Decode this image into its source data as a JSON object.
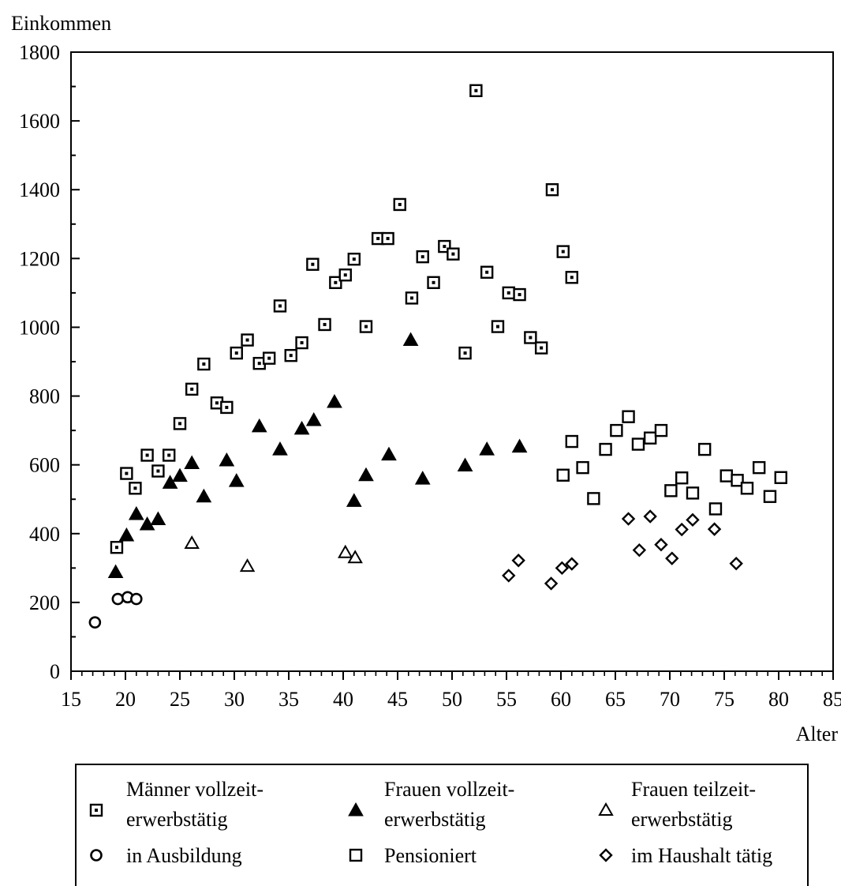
{
  "chart_data": {
    "type": "scatter",
    "ylabel": "Einkommen",
    "xlabel": "Alter",
    "xlim": [
      15,
      85
    ],
    "ylim": [
      0,
      1800
    ],
    "xticks": [
      "15",
      "20",
      "25",
      "30",
      "35",
      "40",
      "45",
      "50",
      "55",
      "60",
      "65",
      "70",
      "75",
      "80",
      "85"
    ],
    "yticks": [
      "0",
      "200",
      "400",
      "600",
      "800",
      "1000",
      "1200",
      "1400",
      "1600",
      "1800"
    ],
    "grid": false,
    "legend_position": "bottom",
    "series": [
      {
        "name_lines": [
          "Männer vollzeit-",
          "erwerbstätig"
        ],
        "marker": "square-dot",
        "points": [
          [
            19.2,
            360
          ],
          [
            20.1,
            575
          ],
          [
            20.9,
            532
          ],
          [
            22,
            628
          ],
          [
            23,
            582
          ],
          [
            24,
            628
          ],
          [
            25,
            720
          ],
          [
            26.1,
            820
          ],
          [
            27.2,
            893
          ],
          [
            28.4,
            780
          ],
          [
            29.3,
            767
          ],
          [
            30.2,
            925
          ],
          [
            31.2,
            963
          ],
          [
            32.3,
            895
          ],
          [
            33.2,
            910
          ],
          [
            34.2,
            1062
          ],
          [
            35.2,
            918
          ],
          [
            36.2,
            955
          ],
          [
            37.2,
            1183
          ],
          [
            38.3,
            1008
          ],
          [
            39.3,
            1130
          ],
          [
            40.2,
            1152
          ],
          [
            41,
            1198
          ],
          [
            42.1,
            1002
          ],
          [
            43.2,
            1258
          ],
          [
            44.1,
            1258
          ],
          [
            45.2,
            1357
          ],
          [
            46.3,
            1085
          ],
          [
            47.3,
            1205
          ],
          [
            48.3,
            1130
          ],
          [
            49.3,
            1235
          ],
          [
            50.1,
            1213
          ],
          [
            51.2,
            925
          ],
          [
            52.2,
            1688
          ],
          [
            53.2,
            1160
          ],
          [
            54.2,
            1002
          ],
          [
            55.2,
            1100
          ],
          [
            56.2,
            1095
          ],
          [
            57.2,
            970
          ],
          [
            58.2,
            940
          ],
          [
            59.2,
            1400
          ],
          [
            60.2,
            1220
          ],
          [
            61,
            1145
          ]
        ]
      },
      {
        "name_lines": [
          "Frauen vollzeit-",
          "erwerbstätig"
        ],
        "marker": "triangle-filled",
        "points": [
          [
            19.1,
            288
          ],
          [
            20.1,
            395
          ],
          [
            21,
            457
          ],
          [
            22,
            427
          ],
          [
            23,
            442
          ],
          [
            24.1,
            548
          ],
          [
            25,
            568
          ],
          [
            26.1,
            605
          ],
          [
            27.2,
            508
          ],
          [
            29.3,
            613
          ],
          [
            30.2,
            553
          ],
          [
            32.3,
            712
          ],
          [
            34.2,
            645
          ],
          [
            36.2,
            705
          ],
          [
            37.3,
            730
          ],
          [
            39.2,
            783
          ],
          [
            41,
            495
          ],
          [
            42.1,
            570
          ],
          [
            44.2,
            630
          ],
          [
            46.2,
            963
          ],
          [
            47.3,
            560
          ],
          [
            51.2,
            598
          ],
          [
            53.2,
            645
          ],
          [
            56.2,
            653
          ]
        ]
      },
      {
        "name_lines": [
          "Frauen teilzeit-",
          "erwerbstätig"
        ],
        "marker": "triangle-open",
        "points": [
          [
            26.1,
            372
          ],
          [
            31.2,
            305
          ],
          [
            40.2,
            345
          ],
          [
            41.1,
            330
          ]
        ]
      },
      {
        "name_lines": [
          "in Ausbildung"
        ],
        "marker": "circle-open",
        "points": [
          [
            17.2,
            142
          ],
          [
            19.3,
            210
          ],
          [
            20.2,
            215
          ],
          [
            21,
            210
          ]
        ]
      },
      {
        "name_lines": [
          "Pensioniert"
        ],
        "marker": "square-open",
        "points": [
          [
            60.2,
            570
          ],
          [
            61,
            668
          ],
          [
            62,
            592
          ],
          [
            63,
            502
          ],
          [
            64.1,
            645
          ],
          [
            65.1,
            700
          ],
          [
            66.2,
            740
          ],
          [
            67.1,
            660
          ],
          [
            68.2,
            678
          ],
          [
            69.2,
            700
          ],
          [
            70.1,
            525
          ],
          [
            71.1,
            562
          ],
          [
            72.1,
            518
          ],
          [
            73.2,
            645
          ],
          [
            74.2,
            472
          ],
          [
            75.2,
            568
          ],
          [
            76.2,
            555
          ],
          [
            77.1,
            532
          ],
          [
            78.2,
            592
          ],
          [
            79.2,
            508
          ],
          [
            80.2,
            563
          ]
        ]
      },
      {
        "name_lines": [
          "im Haushalt tätig"
        ],
        "marker": "diamond-open",
        "points": [
          [
            55.2,
            278
          ],
          [
            56.1,
            322
          ],
          [
            59.1,
            255
          ],
          [
            60.1,
            300
          ],
          [
            61,
            312
          ],
          [
            66.2,
            443
          ],
          [
            67.2,
            352
          ],
          [
            68.2,
            450
          ],
          [
            69.2,
            368
          ],
          [
            70.2,
            328
          ],
          [
            71.1,
            412
          ],
          [
            72.1,
            440
          ],
          [
            74.1,
            413
          ],
          [
            76.1,
            313
          ]
        ]
      }
    ]
  }
}
